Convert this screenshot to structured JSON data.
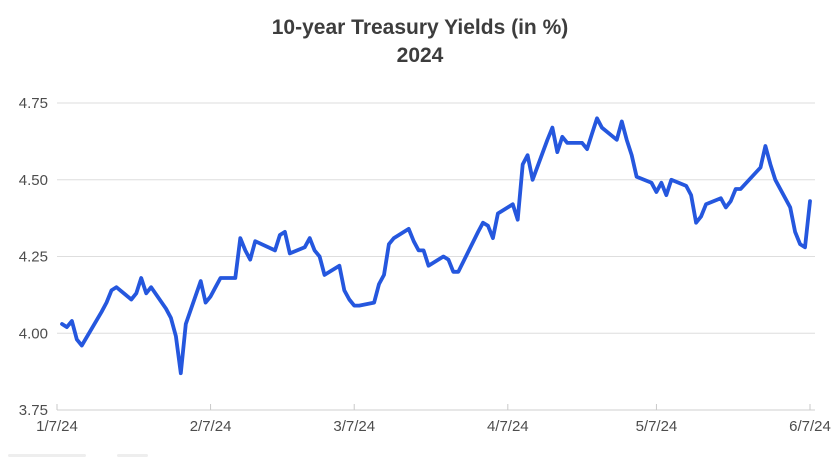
{
  "chart_data": {
    "type": "line",
    "title": "10-year Treasury Yields (in %)",
    "subtitle": "2024",
    "year": 2024,
    "grid": "horizontal",
    "legend_position": "none",
    "ylim": [
      3.75,
      4.75
    ],
    "y_ticks": [
      {
        "label": "3.75",
        "v": 3.75
      },
      {
        "label": "4.00",
        "v": 4.0
      },
      {
        "label": "4.25",
        "v": 4.25
      },
      {
        "label": "4.50",
        "v": 4.5
      },
      {
        "label": "4.75",
        "v": 4.75
      }
    ],
    "x_ticks": [
      {
        "label": "1/7/24",
        "m": 1,
        "d": 7
      },
      {
        "label": "2/7/24",
        "m": 2,
        "d": 7
      },
      {
        "label": "3/7/24",
        "m": 3,
        "d": 7
      },
      {
        "label": "4/7/24",
        "m": 4,
        "d": 7
      },
      {
        "label": "5/7/24",
        "m": 5,
        "d": 7
      },
      {
        "label": "6/7/24",
        "m": 6,
        "d": 7
      }
    ],
    "x_range": {
      "start_m": 1,
      "start_d": 7,
      "end_m": 6,
      "end_d": 7
    },
    "colors": {
      "line": "#2557de",
      "grid": "#dedede",
      "axis": "#cfcfcf",
      "tick": "#c9c9c9",
      "tick_label": "#4d4d4d",
      "title": "#3d3d3d",
      "background": "#ffffff"
    },
    "series": [
      {
        "name": "10-year Treasury yield (%)",
        "points": [
          [
            "1/8",
            4.03
          ],
          [
            "1/9",
            4.02
          ],
          [
            "1/10",
            4.04
          ],
          [
            "1/11",
            3.98
          ],
          [
            "1/12",
            3.96
          ],
          [
            "1/16",
            4.07
          ],
          [
            "1/17",
            4.1
          ],
          [
            "1/18",
            4.14
          ],
          [
            "1/19",
            4.15
          ],
          [
            "1/22",
            4.11
          ],
          [
            "1/23",
            4.13
          ],
          [
            "1/24",
            4.18
          ],
          [
            "1/25",
            4.13
          ],
          [
            "1/26",
            4.15
          ],
          [
            "1/29",
            4.08
          ],
          [
            "1/30",
            4.05
          ],
          [
            "1/31",
            3.99
          ],
          [
            "2/1",
            3.87
          ],
          [
            "2/2",
            4.03
          ],
          [
            "2/5",
            4.17
          ],
          [
            "2/6",
            4.1
          ],
          [
            "2/7",
            4.12
          ],
          [
            "2/8",
            4.15
          ],
          [
            "2/9",
            4.18
          ],
          [
            "2/12",
            4.18
          ],
          [
            "2/13",
            4.31
          ],
          [
            "2/14",
            4.27
          ],
          [
            "2/15",
            4.24
          ],
          [
            "2/16",
            4.3
          ],
          [
            "2/20",
            4.27
          ],
          [
            "2/21",
            4.32
          ],
          [
            "2/22",
            4.33
          ],
          [
            "2/23",
            4.26
          ],
          [
            "2/26",
            4.28
          ],
          [
            "2/27",
            4.31
          ],
          [
            "2/28",
            4.27
          ],
          [
            "2/29",
            4.25
          ],
          [
            "3/1",
            4.19
          ],
          [
            "3/4",
            4.22
          ],
          [
            "3/5",
            4.14
          ],
          [
            "3/6",
            4.11
          ],
          [
            "3/7",
            4.09
          ],
          [
            "3/8",
            4.09
          ],
          [
            "3/11",
            4.1
          ],
          [
            "3/12",
            4.16
          ],
          [
            "3/13",
            4.19
          ],
          [
            "3/14",
            4.29
          ],
          [
            "3/15",
            4.31
          ],
          [
            "3/18",
            4.34
          ],
          [
            "3/19",
            4.3
          ],
          [
            "3/20",
            4.27
          ],
          [
            "3/21",
            4.27
          ],
          [
            "3/22",
            4.22
          ],
          [
            "3/25",
            4.25
          ],
          [
            "3/26",
            4.24
          ],
          [
            "3/27",
            4.2
          ],
          [
            "3/28",
            4.2
          ],
          [
            "4/1",
            4.33
          ],
          [
            "4/2",
            4.36
          ],
          [
            "4/3",
            4.35
          ],
          [
            "4/4",
            4.31
          ],
          [
            "4/5",
            4.39
          ],
          [
            "4/8",
            4.42
          ],
          [
            "4/9",
            4.37
          ],
          [
            "4/10",
            4.55
          ],
          [
            "4/11",
            4.58
          ],
          [
            "4/12",
            4.5
          ],
          [
            "4/15",
            4.63
          ],
          [
            "4/16",
            4.67
          ],
          [
            "4/17",
            4.59
          ],
          [
            "4/18",
            4.64
          ],
          [
            "4/19",
            4.62
          ],
          [
            "4/22",
            4.62
          ],
          [
            "4/23",
            4.6
          ],
          [
            "4/24",
            4.65
          ],
          [
            "4/25",
            4.7
          ],
          [
            "4/26",
            4.67
          ],
          [
            "4/29",
            4.63
          ],
          [
            "4/30",
            4.69
          ],
          [
            "5/1",
            4.63
          ],
          [
            "5/2",
            4.58
          ],
          [
            "5/3",
            4.51
          ],
          [
            "5/6",
            4.49
          ],
          [
            "5/7",
            4.46
          ],
          [
            "5/8",
            4.49
          ],
          [
            "5/9",
            4.45
          ],
          [
            "5/10",
            4.5
          ],
          [
            "5/13",
            4.48
          ],
          [
            "5/14",
            4.45
          ],
          [
            "5/15",
            4.36
          ],
          [
            "5/16",
            4.38
          ],
          [
            "5/17",
            4.42
          ],
          [
            "5/20",
            4.44
          ],
          [
            "5/21",
            4.41
          ],
          [
            "5/22",
            4.43
          ],
          [
            "5/23",
            4.47
          ],
          [
            "5/24",
            4.47
          ],
          [
            "5/28",
            4.54
          ],
          [
            "5/29",
            4.61
          ],
          [
            "5/30",
            4.55
          ],
          [
            "5/31",
            4.5
          ],
          [
            "6/3",
            4.41
          ],
          [
            "6/4",
            4.33
          ],
          [
            "6/5",
            4.29
          ],
          [
            "6/6",
            4.28
          ],
          [
            "6/7",
            4.43
          ]
        ]
      }
    ]
  }
}
